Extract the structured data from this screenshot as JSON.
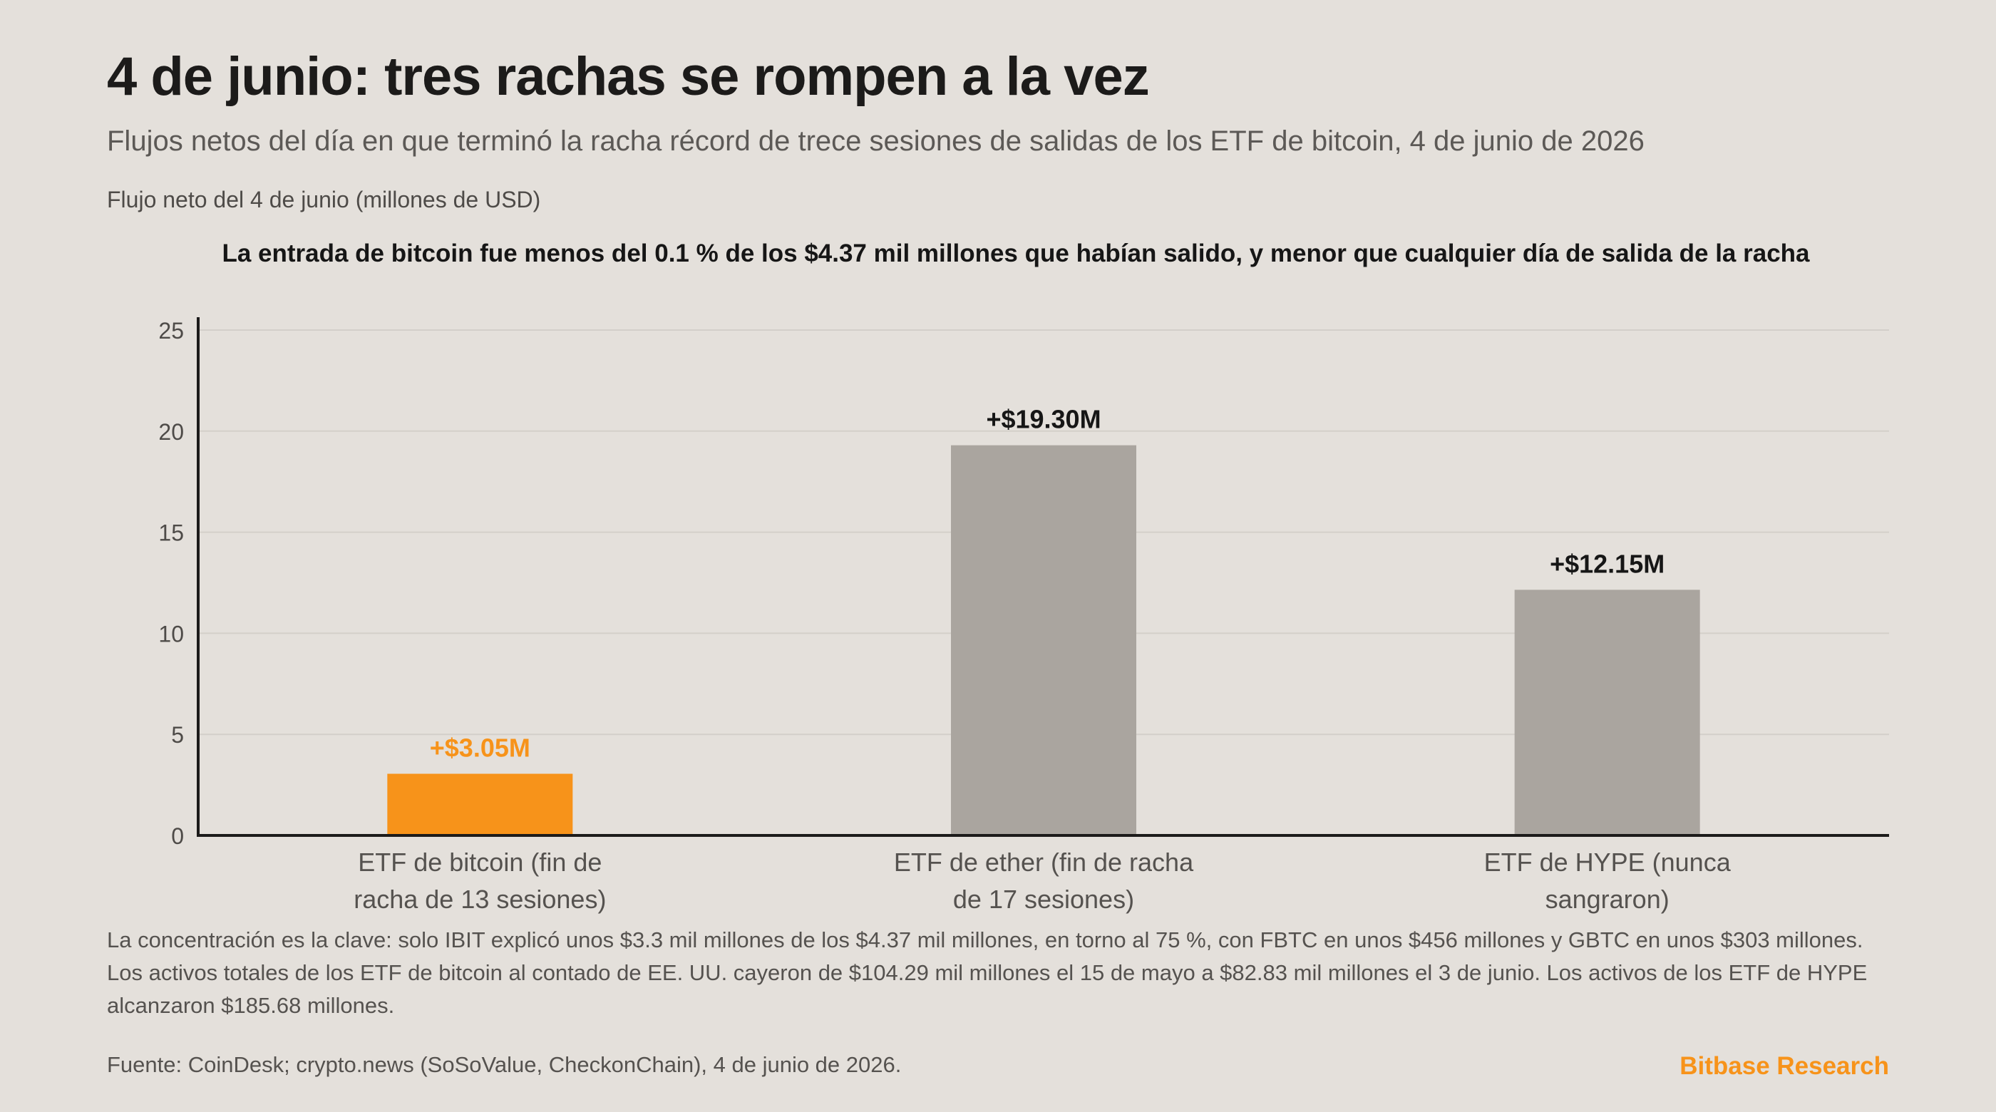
{
  "title": "4 de junio: tres rachas se rompen a la vez",
  "subtitle": "Flujos netos del día en que terminó la racha récord de trece sesiones de salidas de los ETF de bitcoin, 4 de junio de 2026",
  "headline": "La entrada de bitcoin fue menos del 0.1 % de los $4.37 mil millones que habían salido, y menor que cualquier día de salida de la racha",
  "footnote": "La concentración es la clave: solo IBIT explicó unos $3.3 mil millones de los $4.37 mil millones, en torno al 75 %, con FBTC en unos $456 millones y GBTC en unos $303 millones. Los activos totales de los ETF de bitcoin al contado de EE. UU. cayeron de $104.29 mil millones el 15 de mayo a $82.83 mil millones el 3 de junio. Los activos de los ETF de HYPE alcanzaron $185.68 millones.",
  "source": "Fuente: CoinDesk; crypto.news (SoSoValue, CheckonChain), 4 de junio de 2026.",
  "brand": "Bitbase Research",
  "colors": {
    "highlight": "#f7931a",
    "neutral": "#aaa59f",
    "grid": "#d3cfca",
    "axis": "#1c1b1a"
  },
  "chart_data": {
    "type": "bar",
    "ylabel": "Flujo neto del 4 de junio (millones de USD)",
    "ylim": [
      0,
      25
    ],
    "yticks": [
      0,
      5,
      10,
      15,
      20,
      25
    ],
    "grid": true,
    "categories": [
      [
        "ETF de bitcoin (fin de",
        "racha de 13 sesiones)"
      ],
      [
        "ETF de ether (fin de racha",
        "de 17 sesiones)"
      ],
      [
        "ETF de HYPE (nunca",
        "sangraron)"
      ]
    ],
    "values": [
      3.05,
      19.3,
      12.15
    ],
    "value_labels": [
      "+$3.05M",
      "+$19.30M",
      "+$12.15M"
    ],
    "highlight_index": 0
  }
}
